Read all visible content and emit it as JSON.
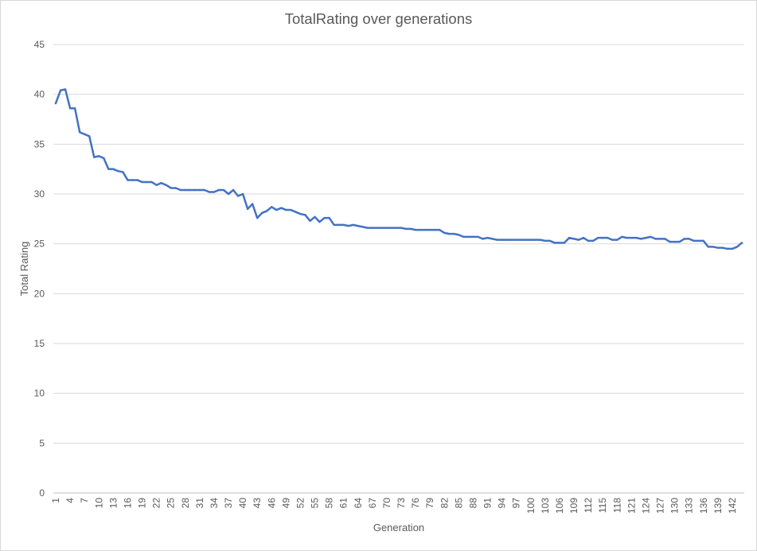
{
  "chart_data": {
    "type": "line",
    "title": "TotalRating over generations",
    "xlabel": "Generation",
    "ylabel": "Total Rating",
    "ylim": [
      0,
      45
    ],
    "yticks": [
      0,
      5,
      10,
      15,
      20,
      25,
      30,
      35,
      40,
      45
    ],
    "xtick_labels": [
      "1",
      "4",
      "7",
      "10",
      "13",
      "16",
      "19",
      "22",
      "25",
      "28",
      "31",
      "34",
      "37",
      "40",
      "43",
      "46",
      "49",
      "52",
      "55",
      "58",
      "61",
      "64",
      "67",
      "70",
      "73",
      "76",
      "79",
      "82",
      "85",
      "88",
      "91",
      "94",
      "97",
      "100",
      "103",
      "106",
      "109",
      "112",
      "115",
      "118",
      "121",
      "124",
      "127",
      "130",
      "133",
      "136",
      "139",
      "142"
    ],
    "grid": true,
    "legend": "none",
    "line_color": "#4472c4",
    "series": [
      {
        "x": [
          1,
          2,
          3,
          4,
          5,
          6,
          7,
          8,
          9,
          10,
          11,
          12,
          13,
          14,
          15,
          16,
          17,
          18,
          19,
          20,
          21,
          22,
          23,
          24,
          25,
          26,
          27,
          28,
          29,
          30,
          31,
          32,
          33,
          34,
          35,
          36,
          37,
          38,
          39,
          40,
          41,
          42,
          43,
          44,
          45,
          46,
          47,
          48,
          49,
          50,
          51,
          52,
          53,
          54,
          55,
          56,
          57,
          58,
          59,
          60,
          61,
          62,
          63,
          64,
          65,
          66,
          67,
          68,
          69,
          70,
          71,
          72,
          73,
          74,
          75,
          76,
          77,
          78,
          79,
          80,
          81,
          82,
          83,
          84,
          85,
          86,
          87,
          88,
          89,
          90,
          91,
          92,
          93,
          94,
          95,
          96,
          97,
          98,
          99,
          100,
          101,
          102,
          103,
          104,
          105,
          106,
          107,
          108,
          109,
          110,
          111,
          112,
          113,
          114,
          115,
          116,
          117,
          118,
          119,
          120,
          121,
          122,
          123,
          124,
          125,
          126,
          127,
          128,
          129,
          130,
          131,
          132,
          133,
          134,
          135,
          136,
          137,
          138,
          139,
          140,
          141,
          142,
          143,
          144
        ],
        "values": [
          39.1,
          40.4,
          40.5,
          38.6,
          38.6,
          36.2,
          36.0,
          35.8,
          33.7,
          33.8,
          33.6,
          32.5,
          32.5,
          32.3,
          32.2,
          31.4,
          31.4,
          31.4,
          31.2,
          31.2,
          31.2,
          30.9,
          31.1,
          30.9,
          30.6,
          30.6,
          30.4,
          30.4,
          30.4,
          30.4,
          30.4,
          30.4,
          30.2,
          30.2,
          30.4,
          30.4,
          30.0,
          30.4,
          29.8,
          30.0,
          28.5,
          29.0,
          27.6,
          28.1,
          28.3,
          28.7,
          28.4,
          28.6,
          28.4,
          28.4,
          28.2,
          28.0,
          27.9,
          27.3,
          27.7,
          27.2,
          27.6,
          27.6,
          26.9,
          26.9,
          26.9,
          26.8,
          26.9,
          26.8,
          26.7,
          26.6,
          26.6,
          26.6,
          26.6,
          26.6,
          26.6,
          26.6,
          26.6,
          26.5,
          26.5,
          26.4,
          26.4,
          26.4,
          26.4,
          26.4,
          26.4,
          26.1,
          26.0,
          26.0,
          25.9,
          25.7,
          25.7,
          25.7,
          25.7,
          25.5,
          25.6,
          25.5,
          25.4,
          25.4,
          25.4,
          25.4,
          25.4,
          25.4,
          25.4,
          25.4,
          25.4,
          25.4,
          25.3,
          25.3,
          25.1,
          25.1,
          25.1,
          25.6,
          25.5,
          25.4,
          25.6,
          25.3,
          25.3,
          25.6,
          25.6,
          25.6,
          25.4,
          25.4,
          25.7,
          25.6,
          25.6,
          25.6,
          25.5,
          25.6,
          25.7,
          25.5,
          25.5,
          25.5,
          25.2,
          25.2,
          25.2,
          25.5,
          25.5,
          25.3,
          25.3,
          25.3,
          24.7,
          24.7,
          24.6,
          24.6,
          24.5,
          24.5,
          24.7,
          25.1
        ]
      }
    ]
  }
}
